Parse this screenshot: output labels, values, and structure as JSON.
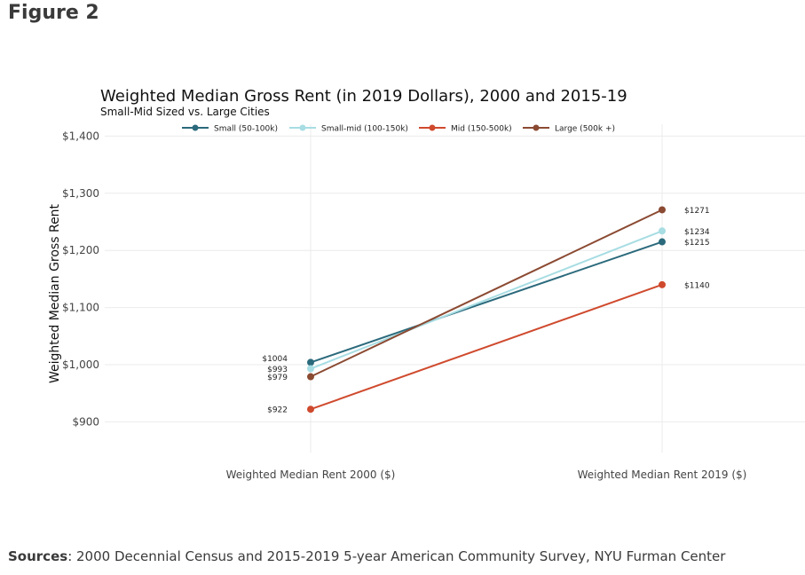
{
  "figure_label": "Figure 2",
  "sources": {
    "label": "Sources",
    "text": ": 2000 Decennial Census and 2015-2019 5-year American Community Survey, NYU Furman Center"
  },
  "chart_data": {
    "type": "line",
    "title": "Weighted Median Gross Rent (in 2019 Dollars), 2000 and 2015-19",
    "subtitle": "Small-Mid Sized vs. Large Cities",
    "xlabel": "",
    "ylabel": "Weighted Median Gross Rent",
    "categories": [
      "Weighted Median Rent 2000 ($)",
      "Weighted Median Rent 2019 ($)"
    ],
    "ylim": [
      860,
      1400
    ],
    "yticks": [
      900,
      1000,
      1100,
      1200,
      1300,
      1400
    ],
    "ytick_labels": [
      "$900",
      "$1,000",
      "$1,100",
      "$1,200",
      "$1,300",
      "$1,400"
    ],
    "grid": true,
    "legend_position": "top",
    "series": [
      {
        "name": "Small (50-100k)",
        "color": "#2b6a7c",
        "values": [
          1004,
          1215
        ],
        "labels": [
          "$1004",
          "$1215"
        ]
      },
      {
        "name": "Small-mid (100-150k)",
        "color": "#a7dde3",
        "values": [
          993,
          1234
        ],
        "labels": [
          "$993",
          "$1234"
        ]
      },
      {
        "name": "Mid (150-500k)",
        "color": "#cf4a2d",
        "values": [
          922,
          1140
        ],
        "labels": [
          "$922",
          "$1140"
        ]
      },
      {
        "name": "Large (500k +)",
        "color": "#8b4a32",
        "values": [
          979,
          1271
        ],
        "labels": [
          "$979",
          "$1271"
        ]
      }
    ]
  }
}
